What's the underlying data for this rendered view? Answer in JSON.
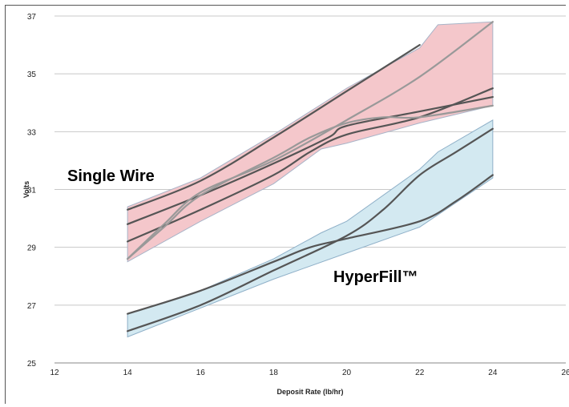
{
  "chart_data": {
    "type": "area",
    "title": "",
    "xlabel": "Deposit Rate (lb/hr)",
    "ylabel": "Volts",
    "xlim": [
      12,
      26
    ],
    "ylim": [
      25,
      37
    ],
    "x_ticks": [
      12,
      14,
      16,
      18,
      20,
      22,
      24,
      26
    ],
    "y_ticks": [
      25,
      27,
      29,
      31,
      33,
      35,
      37
    ],
    "grid": "horizontal",
    "legend": "none",
    "annotations": [
      "Single Wire",
      "HyperFill™"
    ],
    "bands": [
      {
        "group": "Single Wire",
        "color": "#f4c7cb",
        "edge_color": "#a8b4c8",
        "upper": [
          [
            14,
            30.4
          ],
          [
            16,
            31.4
          ],
          [
            18,
            32.9
          ],
          [
            20,
            34.5
          ],
          [
            22,
            35.9
          ],
          [
            22.5,
            36.7
          ],
          [
            24,
            36.8
          ]
        ],
        "lower": [
          [
            14,
            28.5
          ],
          [
            16,
            29.9
          ],
          [
            18,
            31.2
          ],
          [
            19.3,
            32.4
          ],
          [
            20,
            32.6
          ],
          [
            22,
            33.3
          ],
          [
            24,
            33.9
          ]
        ]
      },
      {
        "group": "HyperFill™",
        "color": "#d3e9f1",
        "edge_color": "#8fb0c8",
        "upper": [
          [
            14,
            26.7
          ],
          [
            16,
            27.5
          ],
          [
            18,
            28.6
          ],
          [
            19.3,
            29.5
          ],
          [
            20,
            29.9
          ],
          [
            22,
            31.7
          ],
          [
            22.5,
            32.3
          ],
          [
            24,
            33.4
          ]
        ],
        "lower": [
          [
            14,
            25.9
          ],
          [
            16,
            26.9
          ],
          [
            18,
            27.9
          ],
          [
            20,
            28.8
          ],
          [
            22,
            29.7
          ],
          [
            24,
            31.4
          ]
        ]
      }
    ],
    "series": [
      {
        "group": "Single Wire",
        "color": "#555555",
        "x": [
          14,
          16,
          18,
          20,
          22
        ],
        "y": [
          30.3,
          31.3,
          32.8,
          34.4,
          36.0
        ]
      },
      {
        "group": "Single Wire",
        "color": "#555555",
        "x": [
          14,
          16,
          18,
          19.5,
          20,
          22,
          24
        ],
        "y": [
          29.8,
          30.8,
          31.9,
          32.8,
          33.2,
          33.7,
          34.2
        ]
      },
      {
        "group": "Single Wire",
        "color": "#555555",
        "x": [
          14,
          16,
          18,
          19,
          20,
          22,
          24
        ],
        "y": [
          29.2,
          30.3,
          31.5,
          32.3,
          32.9,
          33.5,
          34.5
        ]
      },
      {
        "group": "Single Wire",
        "color": "#999999",
        "x": [
          14,
          15,
          16,
          18,
          20,
          22,
          24
        ],
        "y": [
          28.6,
          29.8,
          30.9,
          32.0,
          33.4,
          34.9,
          36.8
        ]
      },
      {
        "group": "Single Wire",
        "color": "#999999",
        "x": [
          14,
          15,
          16,
          18,
          19,
          20,
          21,
          22,
          24
        ],
        "y": [
          28.6,
          29.7,
          30.8,
          32.1,
          32.8,
          33.3,
          33.5,
          33.5,
          33.9
        ]
      },
      {
        "group": "HyperFill™",
        "color": "#555555",
        "x": [
          14,
          16,
          18,
          20,
          21,
          22,
          23,
          24
        ],
        "y": [
          26.1,
          27.0,
          28.2,
          29.4,
          30.3,
          31.5,
          32.3,
          33.1
        ]
      },
      {
        "group": "HyperFill™",
        "color": "#555555",
        "x": [
          14,
          16,
          18,
          19,
          20,
          22,
          23,
          24
        ],
        "y": [
          26.7,
          27.5,
          28.5,
          29.0,
          29.3,
          29.9,
          30.6,
          31.5
        ]
      }
    ]
  }
}
